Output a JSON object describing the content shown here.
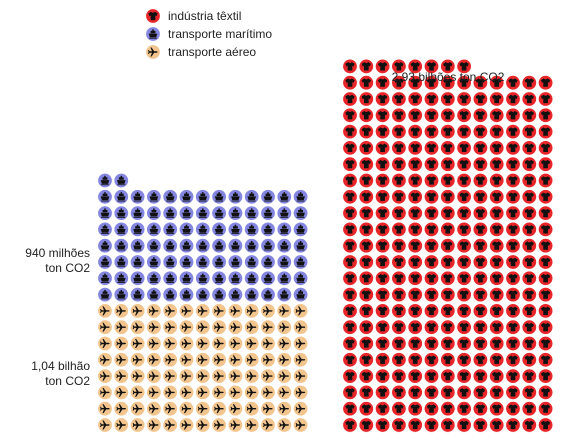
{
  "chart_data": {
    "type": "pictogram",
    "title": "",
    "legend_position": "top-left",
    "unit": "ton CO2",
    "legend": [
      {
        "key": "textile",
        "label": "indústria têxtil",
        "icon": "shirt-icon",
        "color": "#e8262a"
      },
      {
        "key": "maritime",
        "label": "transporte marítimo",
        "icon": "ship-icon",
        "color": "#8486e0"
      },
      {
        "key": "air",
        "label": "transporte aéreo",
        "icon": "airplane-icon",
        "color": "#f2c58e"
      }
    ],
    "series": [
      {
        "name": "indústria têxtil",
        "key": "textile",
        "icon": "shirt-icon",
        "color": "#e8262a",
        "value_label": "2,93 bilhões ton CO2",
        "value_lines": [
          "2,93 bilhões ton CO2"
        ],
        "value": 2.93,
        "value_unit": "bilhões ton CO2",
        "icon_count": 294,
        "icons_per_row": 13
      },
      {
        "name": "transporte marítimo",
        "key": "maritime",
        "icon": "ship-icon",
        "color": "#8486e0",
        "value_label": "940 milhões ton CO2",
        "value_lines": [
          "940 milhões",
          "ton CO2"
        ],
        "value": 0.94,
        "value_unit": "bilhões ton CO2",
        "icon_count": 93,
        "icons_per_row": 13
      },
      {
        "name": "transporte aéreo",
        "key": "air",
        "icon": "airplane-icon",
        "color": "#f2c58e",
        "value_label": "1,04 bilhão ton CO2",
        "value_lines": [
          "1,04 bilhão",
          "ton CO2"
        ],
        "value": 1.04,
        "value_unit": "bilhões ton CO2",
        "icon_count": 104,
        "icons_per_row": 13
      }
    ]
  }
}
